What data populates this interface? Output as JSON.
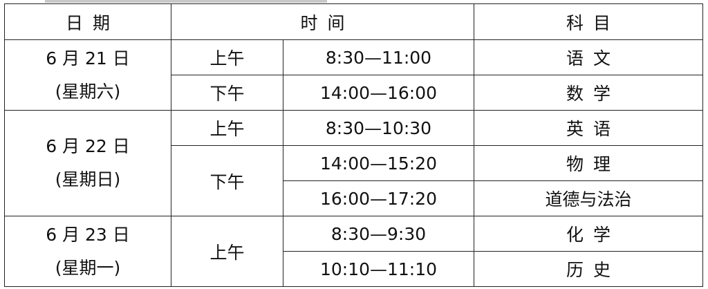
{
  "header": {
    "date": "日期",
    "time": "时间",
    "subject": "科目"
  },
  "days": [
    {
      "date": "6 月 21 日",
      "weekday": "(星期六)",
      "sessions": [
        {
          "period": "上午",
          "slots": [
            {
              "time": "8:30—11:00",
              "subject": "语文"
            }
          ]
        },
        {
          "period": "下午",
          "slots": [
            {
              "time": "14:00—16:00",
              "subject": "数学"
            }
          ]
        }
      ]
    },
    {
      "date": "6 月 22 日",
      "weekday": "(星期日)",
      "sessions": [
        {
          "period": "上午",
          "slots": [
            {
              "time": "8:30—10:30",
              "subject": "英语"
            }
          ]
        },
        {
          "period": "下午",
          "slots": [
            {
              "time": "14:00—15:20",
              "subject": "物理"
            },
            {
              "time": "16:00—17:20",
              "subject": "道德与法治"
            }
          ]
        }
      ]
    },
    {
      "date": "6 月 23 日",
      "weekday": "(星期一)",
      "sessions": [
        {
          "period": "上午",
          "slots": [
            {
              "time": "8:30—9:30",
              "subject": "化学"
            },
            {
              "time": "10:10—11:10",
              "subject": "历史"
            }
          ]
        }
      ]
    }
  ]
}
